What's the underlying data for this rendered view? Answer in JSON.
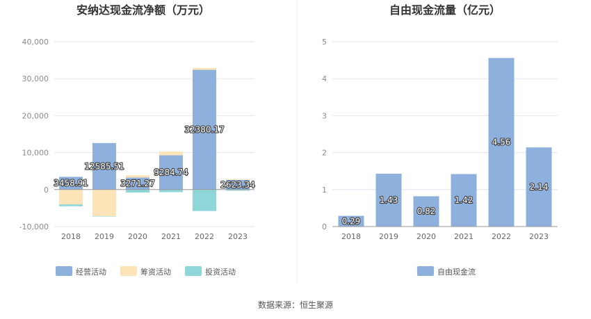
{
  "source_text": "数据来源：恒生聚源",
  "chart_data": [
    {
      "type": "bar",
      "stacked": true,
      "title": "安纳达现金流净额（万元）",
      "categories": [
        "2018",
        "2019",
        "2020",
        "2021",
        "2022",
        "2023"
      ],
      "ylim": [
        -10000,
        40000
      ],
      "yticks": [
        -10000,
        0,
        10000,
        20000,
        30000,
        40000
      ],
      "ytick_labels": [
        "-10,000",
        "0",
        "10,000",
        "20,000",
        "30,000",
        "40,000"
      ],
      "grid": true,
      "legend_position": "bottom",
      "series": [
        {
          "name": "经营活动",
          "color": "#8eb0dc",
          "values": [
            3458.91,
            12585.51,
            3271.27,
            9284.74,
            32380.17,
            2623.34
          ],
          "labels": [
            "3458.91",
            "12585.51",
            "3271.27",
            "9284.74",
            "32380.17",
            "2623.34"
          ]
        },
        {
          "name": "筹资活动",
          "color": "#fde3b8",
          "values": [
            -4000,
            -7200,
            600,
            1000,
            500,
            200
          ]
        },
        {
          "name": "投资活动",
          "color": "#8fd6d8",
          "values": [
            -500,
            -100,
            -800,
            -700,
            -5800,
            -300
          ]
        }
      ]
    },
    {
      "type": "bar",
      "title": "自由现金流量（亿元）",
      "categories": [
        "2018",
        "2019",
        "2020",
        "2021",
        "2022",
        "2023"
      ],
      "ylim": [
        0,
        5
      ],
      "yticks": [
        0,
        1,
        2,
        3,
        4,
        5
      ],
      "ytick_labels": [
        "0",
        "1",
        "2",
        "3",
        "4",
        "5"
      ],
      "grid": true,
      "legend_position": "bottom",
      "series": [
        {
          "name": "自由现金流",
          "color": "#8eb0dc",
          "values": [
            0.29,
            1.43,
            0.82,
            1.42,
            4.56,
            2.14
          ],
          "labels": [
            "0.29",
            "1.43",
            "0.82",
            "1.42",
            "4.56",
            "2.14"
          ]
        }
      ]
    }
  ]
}
